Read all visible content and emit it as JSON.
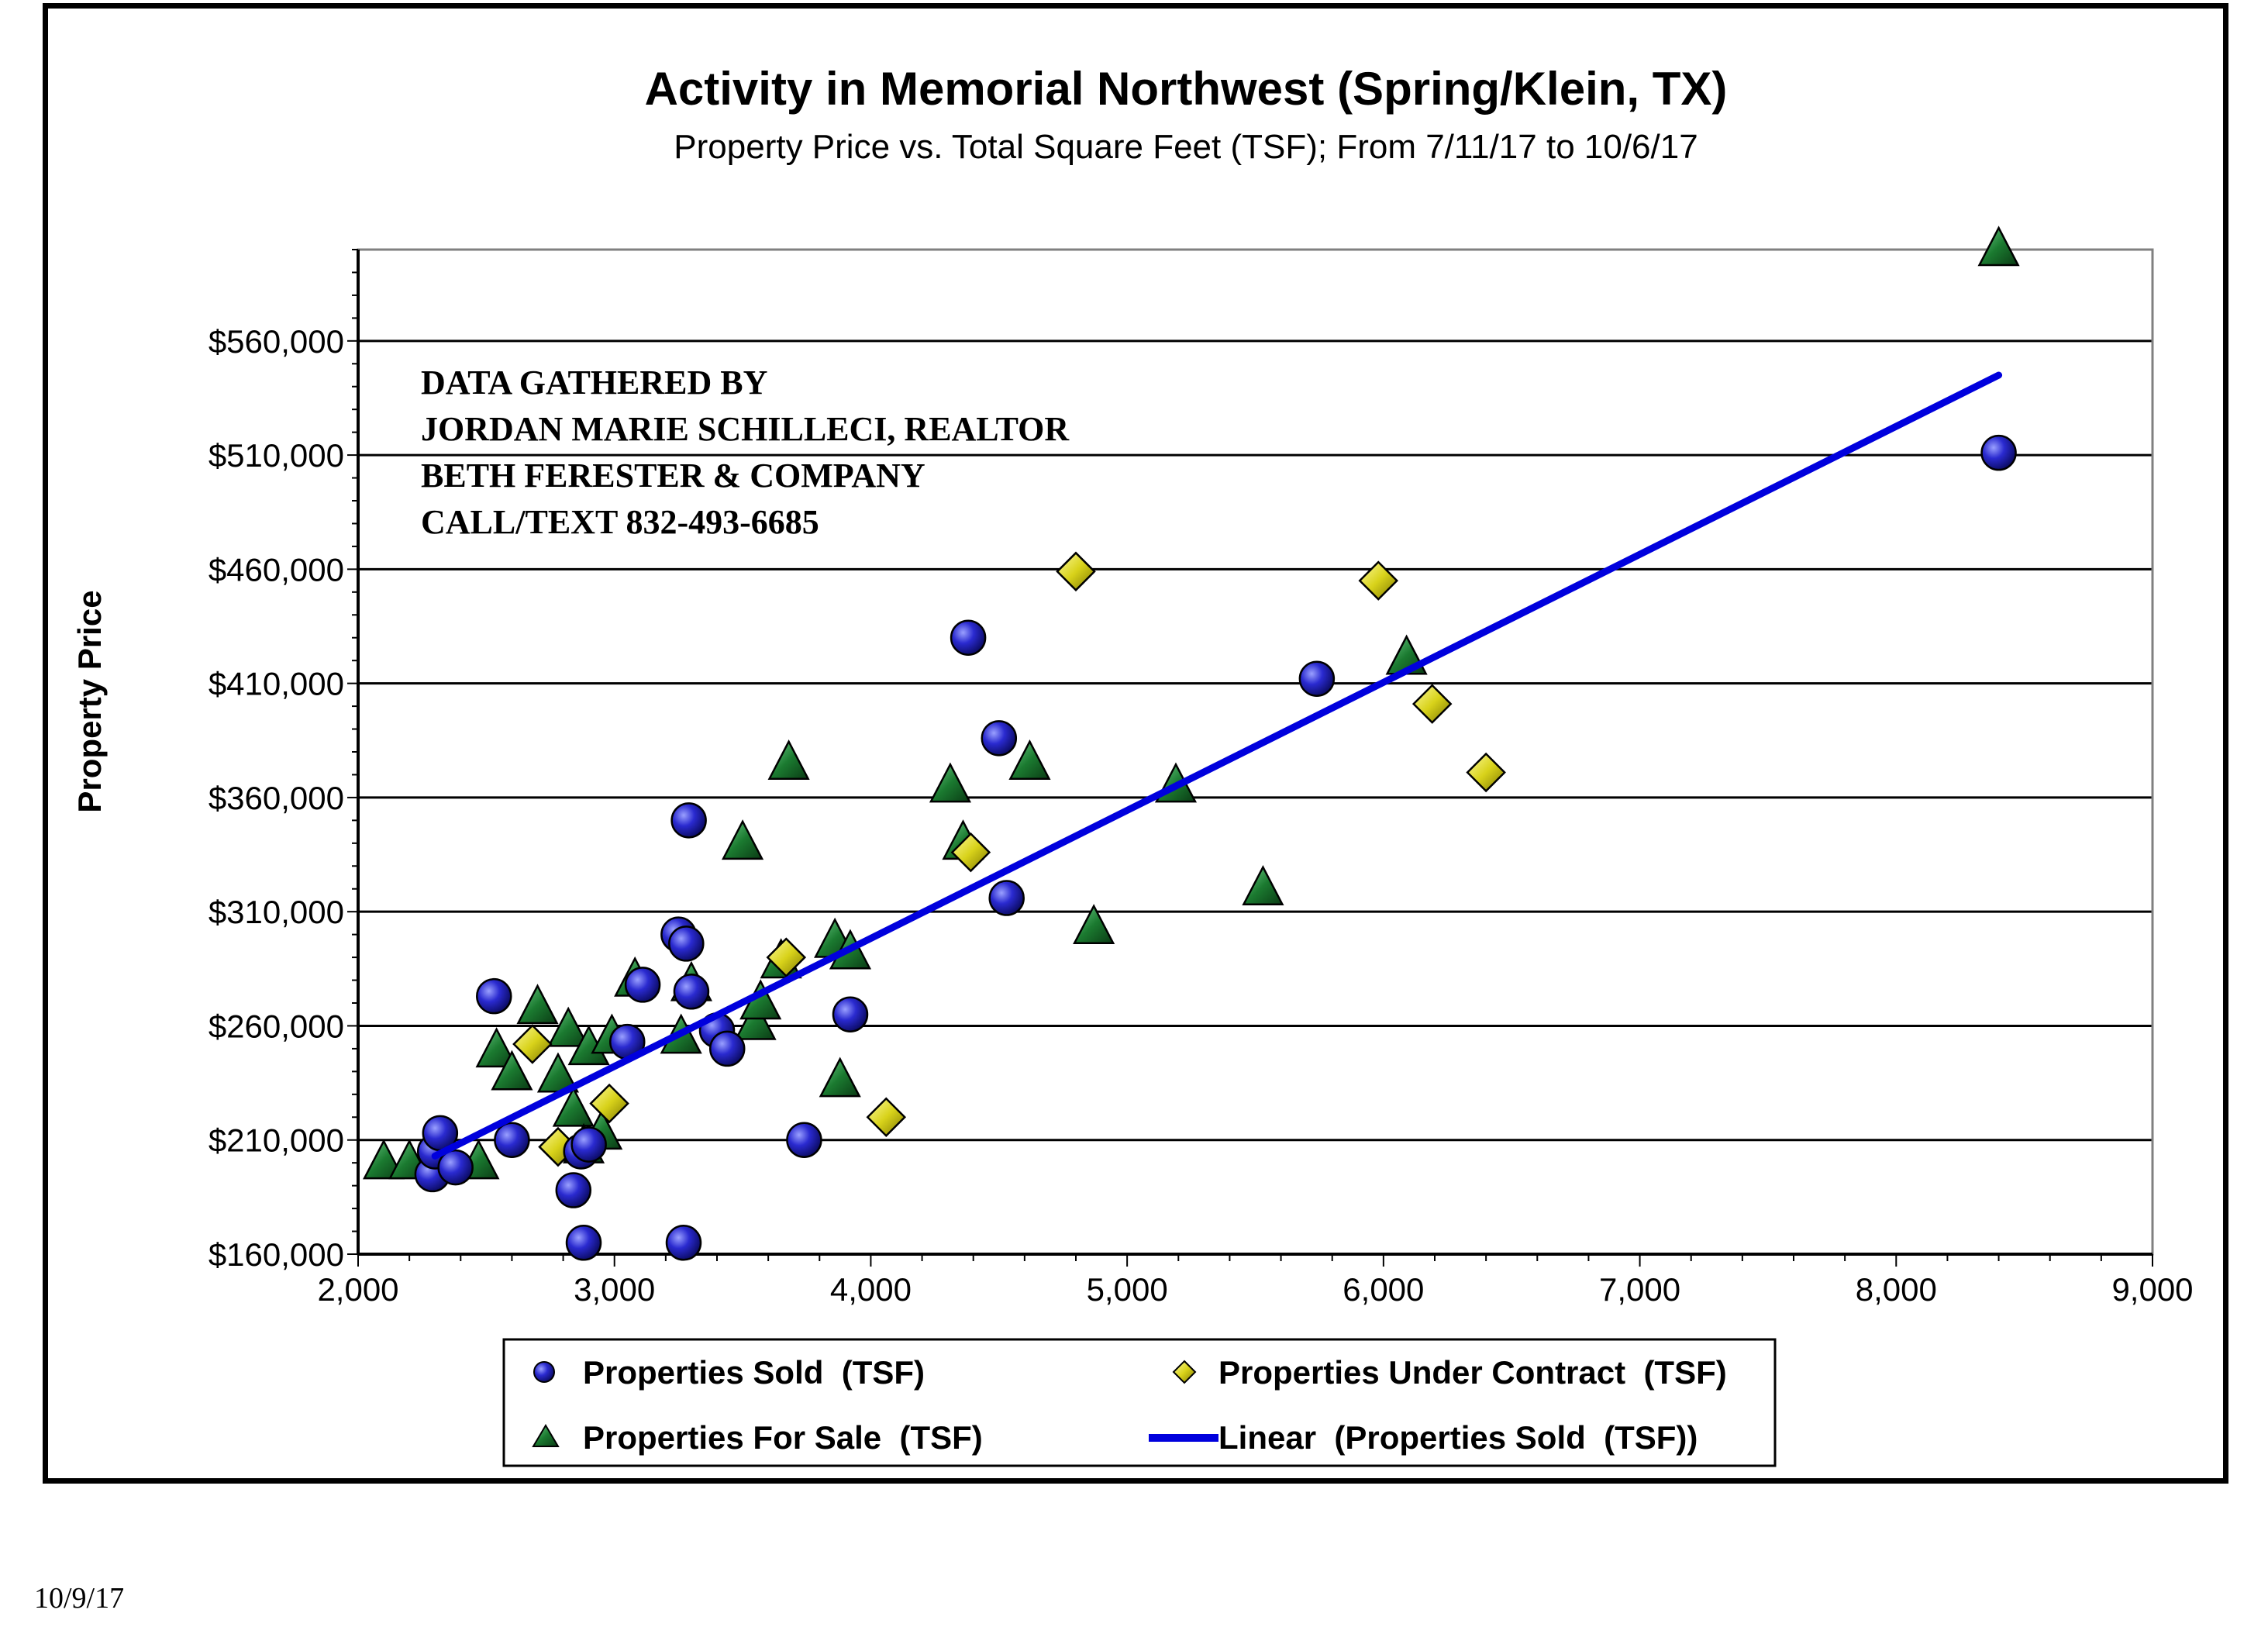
{
  "footer_date": "10/9/17",
  "annotation_lines": [
    "DATA GATHERED BY",
    "JORDAN MARIE SCHILLECI, REALTOR",
    "BETH FERESTER & COMPANY",
    "CALL/TEXT 832-493-6685"
  ],
  "colors": {
    "sold": "#1f1fb8",
    "contract": "#d8d21a",
    "for_sale": "#1b6b2c",
    "trend": "#0000dd",
    "gridline": "#000000"
  },
  "chart_data": {
    "type": "scatter",
    "title": "Activity in Memorial Northwest (Spring/Klein, TX)",
    "subtitle": "Property Price vs. Total Square Feet (TSF); From 7/11/17 to 10/6/17",
    "xlabel": "",
    "ylabel": "Property Price",
    "xlim": [
      2000,
      9000
    ],
    "ylim": [
      160000,
      600000
    ],
    "x_ticks": [
      2000,
      3000,
      4000,
      5000,
      6000,
      7000,
      8000,
      9000
    ],
    "x_tick_labels": [
      "2,000",
      "3,000",
      "4,000",
      "5,000",
      "6,000",
      "7,000",
      "8,000",
      "9,000"
    ],
    "y_ticks": [
      160000,
      210000,
      260000,
      310000,
      360000,
      410000,
      460000,
      510000,
      560000
    ],
    "y_tick_labels": [
      "$160,000",
      "$210,000",
      "$260,000",
      "$310,000",
      "$360,000",
      "$410,000",
      "$460,000",
      "$510,000",
      "$560,000"
    ],
    "grid": "horizontal",
    "legend_placement": "bottom",
    "legend": [
      {
        "key": "sold",
        "label": "Properties Sold  (TSF)",
        "marker": "circle"
      },
      {
        "key": "contract",
        "label": "Properties Under Contract  (TSF)",
        "marker": "diamond"
      },
      {
        "key": "for_sale",
        "label": "Properties For Sale  (TSF)",
        "marker": "triangle"
      },
      {
        "key": "trend",
        "label": "Linear  (Properties Sold  (TSF))",
        "marker": "line"
      }
    ],
    "series": [
      {
        "key": "sold",
        "name": "Properties Sold  (TSF)",
        "points": [
          [
            2290,
            195000
          ],
          [
            2300,
            205000
          ],
          [
            2320,
            213000
          ],
          [
            2380,
            198000
          ],
          [
            2530,
            273000
          ],
          [
            2600,
            210000
          ],
          [
            2840,
            188000
          ],
          [
            2870,
            205000
          ],
          [
            2880,
            165000
          ],
          [
            2900,
            208000
          ],
          [
            3050,
            253000
          ],
          [
            3110,
            278000
          ],
          [
            3250,
            300000
          ],
          [
            3270,
            165000
          ],
          [
            3280,
            296000
          ],
          [
            3290,
            350000
          ],
          [
            3300,
            275000
          ],
          [
            3400,
            258000
          ],
          [
            3440,
            250000
          ],
          [
            3740,
            210000
          ],
          [
            3920,
            265000
          ],
          [
            4380,
            430000
          ],
          [
            4500,
            386000
          ],
          [
            4530,
            316000
          ],
          [
            5740,
            412000
          ],
          [
            8400,
            511000
          ]
        ]
      },
      {
        "key": "contract",
        "name": "Properties Under Contract  (TSF)",
        "points": [
          [
            2680,
            252000
          ],
          [
            2780,
            207000
          ],
          [
            2980,
            226000
          ],
          [
            3670,
            290000
          ],
          [
            4060,
            220000
          ],
          [
            4390,
            336000
          ],
          [
            4800,
            459000
          ],
          [
            5980,
            455000
          ],
          [
            6190,
            401000
          ],
          [
            6400,
            371000
          ]
        ]
      },
      {
        "key": "for_sale",
        "name": "Properties For Sale  (TSF)",
        "points": [
          [
            2100,
            200000
          ],
          [
            2200,
            200000
          ],
          [
            2470,
            200000
          ],
          [
            2540,
            249000
          ],
          [
            2600,
            239000
          ],
          [
            2700,
            268000
          ],
          [
            2780,
            238000
          ],
          [
            2820,
            258000
          ],
          [
            2840,
            223000
          ],
          [
            2880,
            207000
          ],
          [
            2900,
            250000
          ],
          [
            2950,
            213000
          ],
          [
            2990,
            255000
          ],
          [
            3080,
            280000
          ],
          [
            3260,
            255000
          ],
          [
            3300,
            278000
          ],
          [
            3500,
            340000
          ],
          [
            3550,
            261000
          ],
          [
            3570,
            270000
          ],
          [
            3650,
            288000
          ],
          [
            3680,
            375000
          ],
          [
            3860,
            297000
          ],
          [
            3880,
            236000
          ],
          [
            3920,
            292000
          ],
          [
            4310,
            365000
          ],
          [
            4360,
            340000
          ],
          [
            4620,
            375000
          ],
          [
            4870,
            303000
          ],
          [
            5190,
            365000
          ],
          [
            5530,
            320000
          ],
          [
            6090,
            421000
          ],
          [
            8400,
            600000
          ]
        ]
      }
    ],
    "trendline": {
      "key": "trend",
      "name": "Linear  (Properties Sold  (TSF))",
      "x": [
        2300,
        8400
      ],
      "y": [
        203000,
        545000
      ]
    }
  }
}
